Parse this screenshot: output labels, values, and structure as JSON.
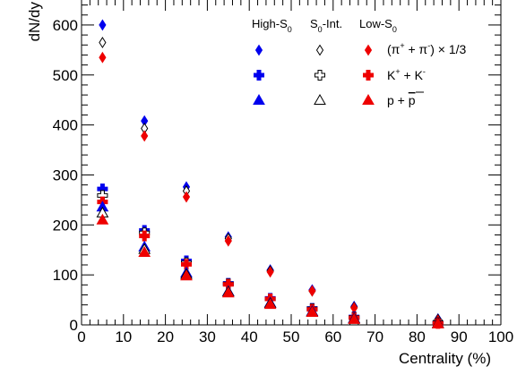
{
  "chart_data": {
    "type": "scatter",
    "xlabel": "Centrality (%)",
    "ylabel": "dN/dy",
    "xlim": [
      0,
      100
    ],
    "ylim": [
      0,
      650
    ],
    "x_ticks": [
      0,
      10,
      20,
      30,
      40,
      50,
      60,
      70,
      80,
      90,
      100
    ],
    "y_ticks": [
      0,
      100,
      200,
      300,
      400,
      500,
      600
    ],
    "grid": false,
    "legend_placement": "top-right",
    "legend": {
      "column_headers": [
        "High-S",
        "S",
        "-Int.",
        "Low-S"
      ],
      "header_subscript": "0",
      "rows": [
        {
          "label_main": "(π",
          "label_sup1": "+",
          "label_mid": " + π",
          "label_sup2": "-",
          "label_end": ") × 1/3",
          "marker": "diamond"
        },
        {
          "label_main": "K",
          "label_sup1": "+",
          "label_mid": " + K",
          "label_sup2": "-",
          "label_end": "",
          "marker": "cross"
        },
        {
          "label_main": "p + ",
          "label_sup1": "",
          "label_mid": "p",
          "label_sup2": "",
          "label_end": "",
          "marker": "triangle",
          "overline_mid": true
        }
      ]
    },
    "colors": {
      "high": "#0000ee",
      "int": "#000000",
      "low": "#ee0000"
    },
    "series": [
      {
        "species": "pion",
        "class": "high",
        "marker": "diamond",
        "fill": true,
        "x": [
          5,
          15,
          25,
          35,
          45,
          55,
          65,
          85
        ],
        "y": [
          600,
          408,
          276,
          176,
          110,
          70,
          37,
          12
        ]
      },
      {
        "species": "pion",
        "class": "int",
        "marker": "diamond",
        "fill": false,
        "x": [
          5,
          15,
          25,
          35,
          45,
          55,
          65,
          85
        ],
        "y": [
          565,
          393,
          268,
          173,
          108,
          68,
          35,
          11
        ]
      },
      {
        "species": "pion",
        "class": "low",
        "marker": "diamond",
        "fill": true,
        "x": [
          5,
          15,
          25,
          35,
          45,
          55,
          65,
          85
        ],
        "y": [
          535,
          378,
          256,
          168,
          106,
          68,
          34,
          9
        ]
      },
      {
        "species": "kaon",
        "class": "high",
        "marker": "cross",
        "fill": true,
        "x": [
          5,
          15,
          25,
          35,
          45,
          55,
          65,
          85
        ],
        "y": [
          272,
          189,
          128,
          83,
          53,
          33,
          16,
          4
        ]
      },
      {
        "species": "kaon",
        "class": "int",
        "marker": "cross",
        "fill": false,
        "x": [
          5,
          15,
          25,
          35,
          45,
          55,
          65,
          85
        ],
        "y": [
          259,
          184,
          124,
          82,
          52,
          32,
          15,
          4
        ]
      },
      {
        "species": "kaon",
        "class": "low",
        "marker": "cross",
        "fill": true,
        "x": [
          5,
          15,
          25,
          35,
          45,
          55,
          65,
          85
        ],
        "y": [
          246,
          178,
          121,
          81,
          52,
          31,
          14,
          3
        ]
      },
      {
        "species": "proton",
        "class": "high",
        "marker": "triangle",
        "fill": true,
        "x": [
          5,
          15,
          25,
          35,
          45,
          55,
          65,
          85
        ],
        "y": [
          236,
          156,
          104,
          67,
          44,
          27,
          13,
          3
        ]
      },
      {
        "species": "proton",
        "class": "int",
        "marker": "triangle",
        "fill": false,
        "x": [
          5,
          15,
          25,
          35,
          45,
          55,
          65,
          85
        ],
        "y": [
          224,
          151,
          101,
          66,
          43,
          26,
          12,
          3
        ]
      },
      {
        "species": "proton",
        "class": "low",
        "marker": "triangle",
        "fill": true,
        "x": [
          5,
          15,
          25,
          35,
          45,
          55,
          65,
          85
        ],
        "y": [
          210,
          145,
          98,
          64,
          41,
          25,
          11,
          2
        ]
      }
    ]
  }
}
